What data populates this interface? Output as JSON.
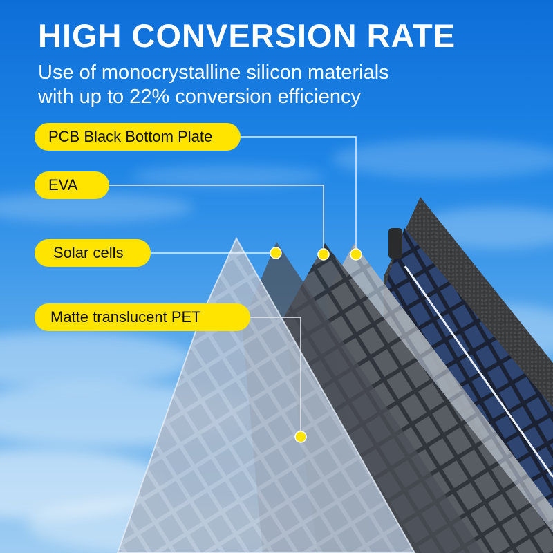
{
  "header": {
    "title": "HIGH CONVERSION RATE",
    "subtitle_line1": "Use of monocrystalline silicon materials",
    "subtitle_line2": "with up to 22% conversion efficiency"
  },
  "layers": [
    {
      "label": "PCB Black Bottom Plate"
    },
    {
      "label": "EVA"
    },
    {
      "label": "Solar cells"
    },
    {
      "label": "Matte translucent PET"
    }
  ],
  "colors": {
    "sky_top": "#0d6ed8",
    "sky_bottom": "#9fcdf2",
    "label_fill": "#ffe400",
    "label_text": "#111111",
    "callout_dot": "#ffe400",
    "heading_text": "#ffffff"
  }
}
